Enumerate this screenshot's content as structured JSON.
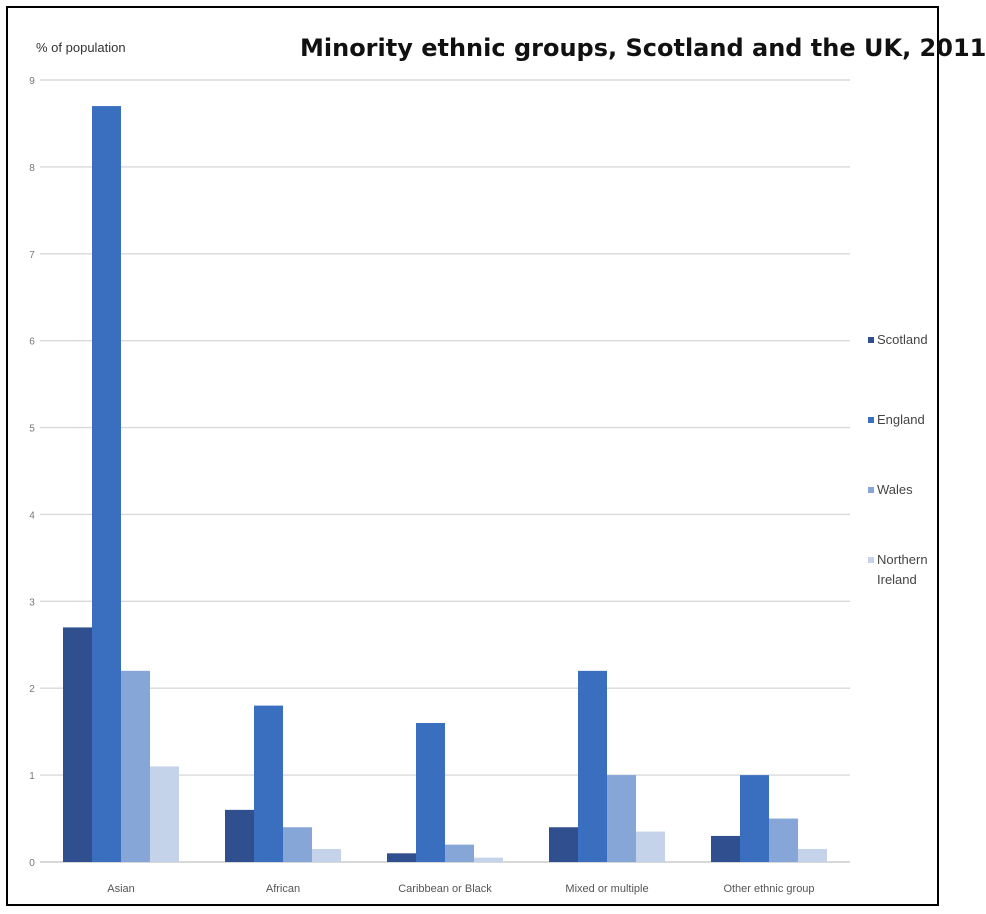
{
  "chart_data": {
    "type": "bar",
    "title": "Minority ethnic groups, Scotland and the UK, 2011",
    "ylabel": "% of population",
    "xlabel": "",
    "ylim": [
      0,
      9
    ],
    "yticks": [
      0,
      1,
      2,
      3,
      4,
      5,
      6,
      7,
      8,
      9
    ],
    "categories": [
      "Asian",
      "African",
      "Caribbean or Black",
      "Mixed or multiple",
      "Other ethnic group"
    ],
    "series": [
      {
        "name": "Scotland",
        "color": "#2f4f8f",
        "values": [
          2.7,
          0.6,
          0.1,
          0.4,
          0.3
        ]
      },
      {
        "name": "England",
        "color": "#3a6fc0",
        "values": [
          8.7,
          1.8,
          1.6,
          2.2,
          1.0
        ]
      },
      {
        "name": "Wales",
        "color": "#86a6d8",
        "values": [
          2.2,
          0.4,
          0.2,
          1.0,
          0.5
        ]
      },
      {
        "name": "Northern Ireland",
        "color": "#c4d2ea",
        "values": [
          1.1,
          0.15,
          0.05,
          0.35,
          0.15
        ]
      }
    ],
    "grid": true,
    "legend": "right"
  }
}
